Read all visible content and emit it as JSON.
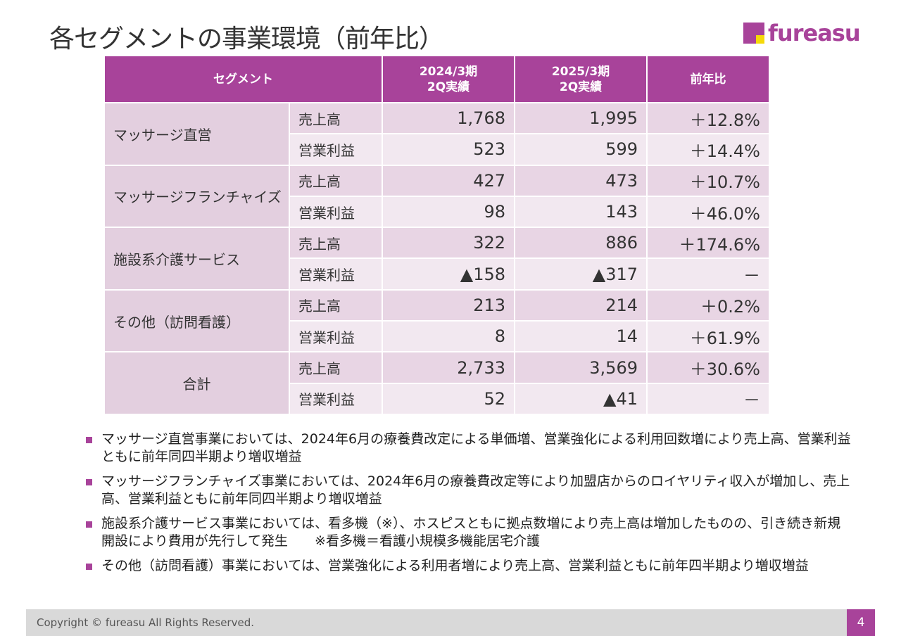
{
  "title": "各セグメントの事業環境（前年比）",
  "logo": {
    "text": "fureasu",
    "colors": {
      "purple": "#a8439a",
      "yellow": "#f5d90a"
    }
  },
  "table": {
    "headers": [
      "セグメント",
      "2024/3期\n2Q実績",
      "2025/3期\n2Q実績",
      "前年比"
    ],
    "header_lines": [
      [
        "2024/3期",
        "2Q実績"
      ],
      [
        "2025/3期",
        "2Q実績"
      ]
    ],
    "segments": [
      {
        "name": "マッサージ直営",
        "rows": [
          {
            "item": "売上高",
            "prev": "1,768",
            "curr": "1,995",
            "yoy": "＋12.8%"
          },
          {
            "item": "営業利益",
            "prev": "523",
            "curr": "599",
            "yoy": "＋14.4%"
          }
        ]
      },
      {
        "name": "マッサージフランチャイズ",
        "rows": [
          {
            "item": "売上高",
            "prev": "427",
            "curr": "473",
            "yoy": "＋10.7%"
          },
          {
            "item": "営業利益",
            "prev": "98",
            "curr": "143",
            "yoy": "＋46.0%"
          }
        ]
      },
      {
        "name": "施設系介護サービス",
        "rows": [
          {
            "item": "売上高",
            "prev": "322",
            "curr": "886",
            "yoy": "＋174.6%"
          },
          {
            "item": "営業利益",
            "prev": "▲158",
            "curr": "▲317",
            "yoy": "－"
          }
        ]
      },
      {
        "name": "その他（訪問看護）",
        "rows": [
          {
            "item": "売上高",
            "prev": "213",
            "curr": "214",
            "yoy": "＋0.2%"
          },
          {
            "item": "営業利益",
            "prev": "8",
            "curr": "14",
            "yoy": "＋61.9%"
          }
        ]
      },
      {
        "name": "合計",
        "rows": [
          {
            "item": "売上高",
            "prev": "2,733",
            "curr": "3,569",
            "yoy": "＋30.6%"
          },
          {
            "item": "営業利益",
            "prev": "52",
            "curr": "▲41",
            "yoy": "－"
          }
        ]
      }
    ],
    "colors": {
      "header": "#a8439a",
      "segment": "#e3cfdf",
      "row_a": "#e8d5e4",
      "row_b": "#f2e8f0"
    }
  },
  "bullets": [
    "マッサージ直営事業においては、2024年6月の療養費改定による単価増、営業強化による利用回数増により売上高、営業利益ともに前年同四半期より増収増益",
    "マッサージフランチャイズ事業においては、2024年6月の療養費改定等により加盟店からのロイヤリティ収入が増加し、売上高、営業利益ともに前年同四半期より増収増益",
    "施設系介護サービス事業においては、看多機（※）、ホスピスともに拠点数増により売上高は増加したものの、引き続き新規開設により費用が先行して発生　　※看多機＝看護小規模多機能居宅介護",
    "その他（訪問看護）事業においては、営業強化による利用者増により売上高、営業利益ともに前年四半期より増収増益"
  ],
  "footer": {
    "copyright": "Copyright © fureasu All Rights Reserved.",
    "page": "4"
  }
}
